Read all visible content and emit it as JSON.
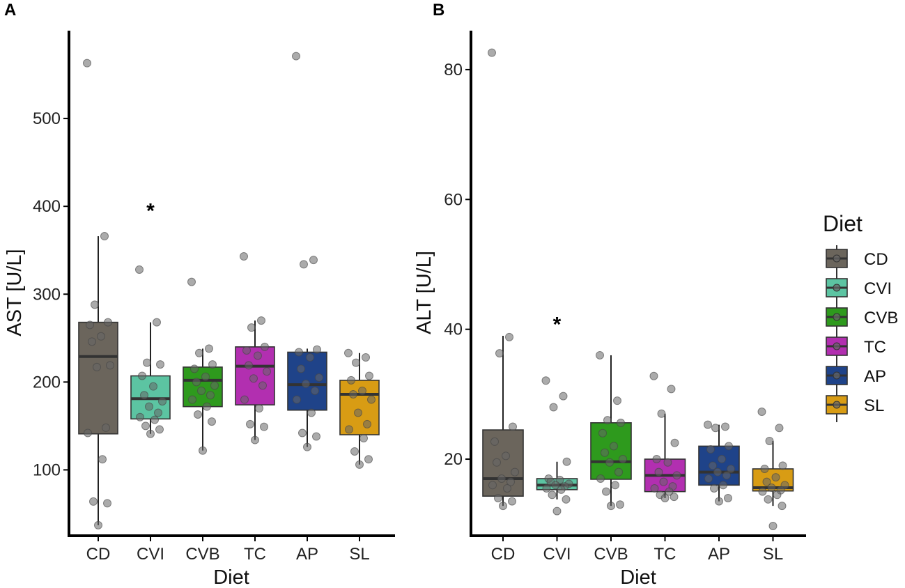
{
  "chart_data": [
    {
      "panel": "A",
      "type": "box",
      "xlabel": "Diet",
      "ylabel": "AST [U/L]",
      "ylim": [
        25,
        600
      ],
      "yticks": [
        100,
        200,
        300,
        400,
        500
      ],
      "ytick_labels": [
        "100",
        "200",
        "300",
        "400",
        "500"
      ],
      "categories": [
        "CD",
        "CVI",
        "CVB",
        "TC",
        "AP",
        "SL"
      ],
      "boxes": [
        {
          "q1": 141,
          "median": 229,
          "q3": 268,
          "wmin": 37,
          "wmax": 366
        },
        {
          "q1": 158,
          "median": 181,
          "q3": 207,
          "wmin": 141,
          "wmax": 268
        },
        {
          "q1": 172,
          "median": 202,
          "q3": 217,
          "wmin": 122,
          "wmax": 238
        },
        {
          "q1": 174,
          "median": 218,
          "q3": 240,
          "wmin": 134,
          "wmax": 270
        },
        {
          "q1": 168,
          "median": 197,
          "q3": 234,
          "wmin": 126,
          "wmax": 238
        },
        {
          "q1": 140,
          "median": 186,
          "q3": 202,
          "wmin": 106,
          "wmax": 233
        }
      ],
      "points": [
        [
          563,
          366,
          288,
          268,
          265,
          252,
          246,
          219,
          217,
          148,
          142,
          112,
          64,
          62,
          37
        ],
        [
          328,
          268,
          222,
          220,
          207,
          195,
          185,
          178,
          172,
          165,
          160,
          157,
          150,
          146,
          141
        ],
        [
          314,
          238,
          233,
          220,
          215,
          206,
          200,
          196,
          190,
          185,
          180,
          172,
          163,
          155,
          122
        ],
        [
          343,
          270,
          262,
          240,
          236,
          230,
          219,
          212,
          204,
          196,
          180,
          170,
          152,
          149,
          134
        ],
        [
          571,
          339,
          334,
          237,
          234,
          228,
          215,
          205,
          198,
          190,
          180,
          165,
          142,
          138,
          126
        ],
        [
          233,
          228,
          222,
          207,
          202,
          190,
          186,
          180,
          165,
          152,
          146,
          136,
          121,
          112,
          106
        ]
      ],
      "annotations": [
        {
          "category": "CVI",
          "text": "*",
          "y": 398
        }
      ]
    },
    {
      "panel": "B",
      "type": "box",
      "xlabel": "Diet",
      "ylabel": "ALT [U/L]",
      "ylim": [
        8.2,
        86
      ],
      "yticks": [
        20,
        40,
        60,
        80
      ],
      "ytick_labels": [
        "20",
        "40",
        "60",
        "80"
      ],
      "categories": [
        "CD",
        "CVI",
        "CVB",
        "TC",
        "AP",
        "SL"
      ],
      "boxes": [
        {
          "q1": 14.3,
          "median": 17.0,
          "q3": 24.5,
          "wmin": 12.8,
          "wmax": 39.0
        },
        {
          "q1": 15.3,
          "median": 16.0,
          "q3": 17.0,
          "wmin": 13.8,
          "wmax": 19.6
        },
        {
          "q1": 16.9,
          "median": 19.6,
          "q3": 25.6,
          "wmin": 12.8,
          "wmax": 36.0
        },
        {
          "q1": 15.0,
          "median": 17.5,
          "q3": 20.0,
          "wmin": 14.0,
          "wmax": 27.0
        },
        {
          "q1": 16.0,
          "median": 18.0,
          "q3": 22.0,
          "wmin": 13.5,
          "wmax": 25.3
        },
        {
          "q1": 15.1,
          "median": 15.6,
          "q3": 18.5,
          "wmin": 12.8,
          "wmax": 22.8
        }
      ],
      "points": [
        [
          82.6,
          38.8,
          36.3,
          25.0,
          22.7,
          20.5,
          19.5,
          18.0,
          17.0,
          16.5,
          16.0,
          15.5,
          14.0,
          13.5,
          12.8
        ],
        [
          32.1,
          29.7,
          28.0,
          19.6,
          17.0,
          16.8,
          16.5,
          16.2,
          16.0,
          15.8,
          15.5,
          15.3,
          14.5,
          13.8,
          12.0
        ],
        [
          36.0,
          29.0,
          26.0,
          25.6,
          24.0,
          22.0,
          21.0,
          20.0,
          19.5,
          18.0,
          17.0,
          16.0,
          15.0,
          13.0,
          12.8
        ],
        [
          32.8,
          30.8,
          27.0,
          22.5,
          20.0,
          19.5,
          18.0,
          17.5,
          16.5,
          15.8,
          15.5,
          15.0,
          14.5,
          14.2,
          14.0
        ],
        [
          25.3,
          25.0,
          24.8,
          22.0,
          21.5,
          20.0,
          19.0,
          18.5,
          18.0,
          17.5,
          17.0,
          16.0,
          15.5,
          14.0,
          13.5
        ],
        [
          27.3,
          24.8,
          22.8,
          19.0,
          18.5,
          17.2,
          16.5,
          16.0,
          15.6,
          15.2,
          15.0,
          14.5,
          13.8,
          12.8,
          9.7
        ]
      ],
      "annotations": [
        {
          "category": "CVI",
          "text": "*",
          "y": 41.2
        }
      ]
    }
  ],
  "legend": {
    "title": "Diet",
    "items": [
      {
        "label": "CD",
        "color": "#6b655c"
      },
      {
        "label": "CVI",
        "color": "#5cc4a2"
      },
      {
        "label": "CVB",
        "color": "#2e9a1d"
      },
      {
        "label": "TC",
        "color": "#b22fb0"
      },
      {
        "label": "AP",
        "color": "#1f4389"
      },
      {
        "label": "SL",
        "color": "#d89c14"
      }
    ]
  },
  "panel_labels": [
    "A",
    "B"
  ],
  "point_color": "#666666"
}
